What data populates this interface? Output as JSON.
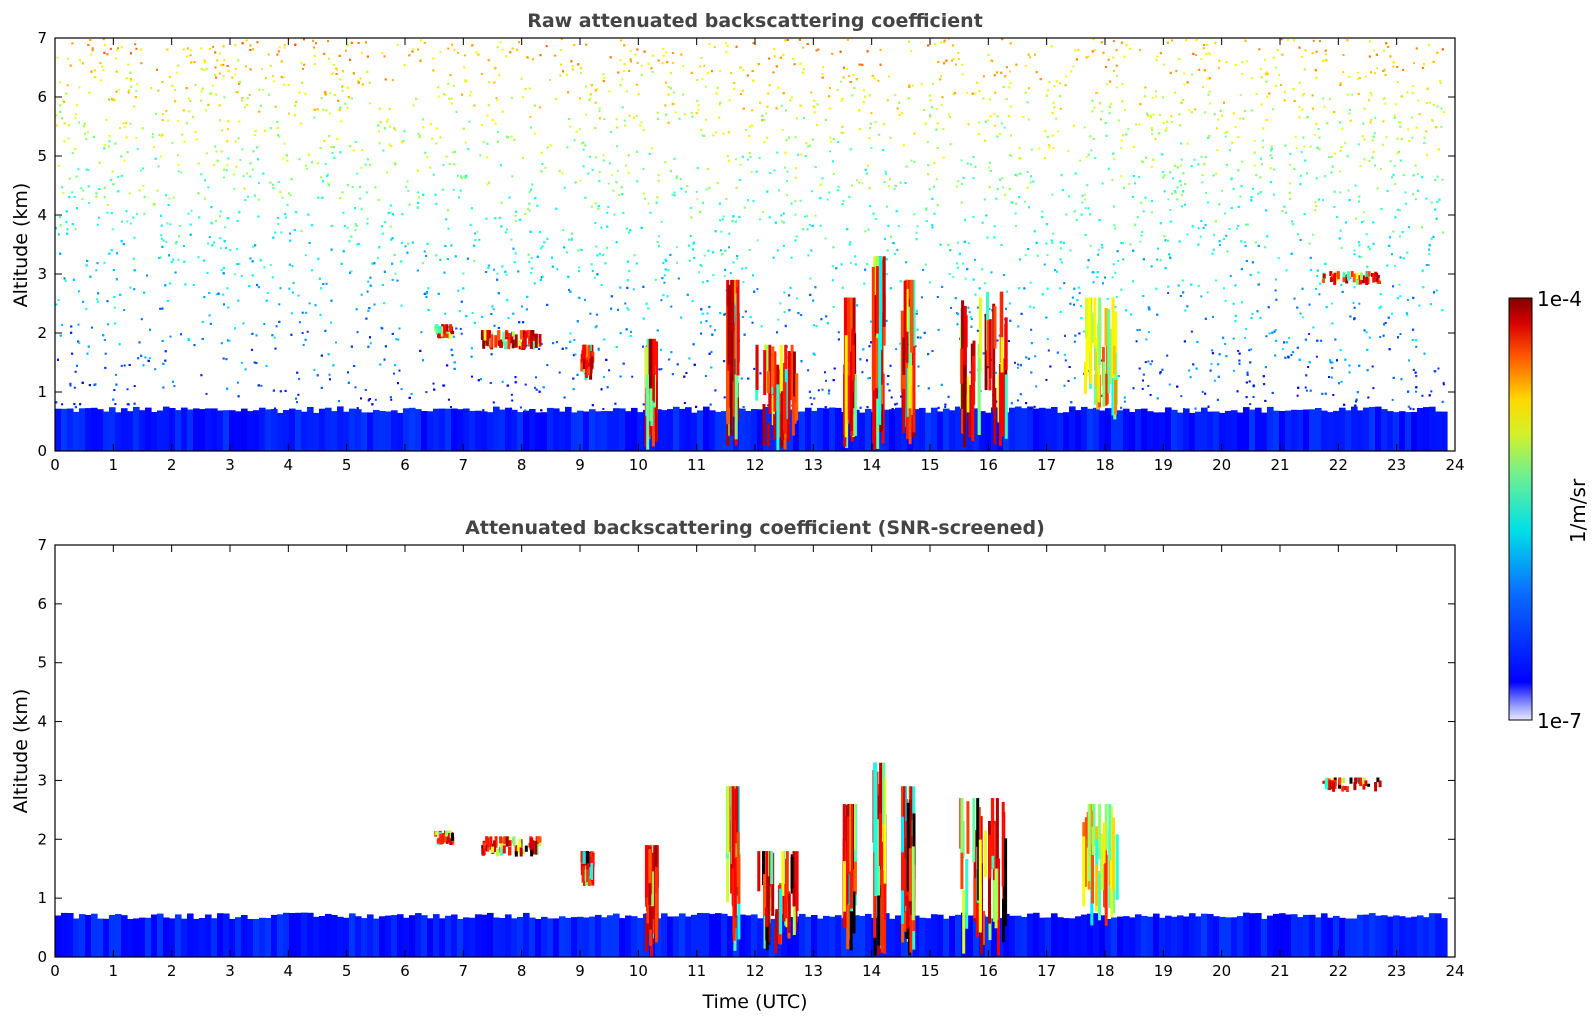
{
  "chart_data": [
    {
      "type": "heatmap",
      "title": "Raw attenuated backscattering coefficient",
      "xlabel": "",
      "ylabel": "Altitude (km)",
      "xlim": [
        0,
        24
      ],
      "ylim": [
        0,
        7
      ],
      "x_ticks": [
        "0",
        "1",
        "2",
        "3",
        "4",
        "5",
        "6",
        "7",
        "8",
        "9",
        "10",
        "11",
        "12",
        "13",
        "14",
        "15",
        "16",
        "17",
        "18",
        "19",
        "20",
        "21",
        "22",
        "23",
        "24"
      ],
      "y_ticks": [
        "0",
        "1",
        "2",
        "3",
        "4",
        "5",
        "6",
        "7"
      ],
      "boundary_layer_top_km": 0.7,
      "features": [
        {
          "kind": "aerosol_layer",
          "x0": 7.3,
          "x1": 8.3,
          "y0": 1.7,
          "y1": 2.05,
          "level": "high"
        },
        {
          "kind": "cloud",
          "x0": 6.5,
          "x1": 6.8,
          "y0": 1.9,
          "y1": 2.15,
          "level": "high"
        },
        {
          "kind": "cloud",
          "x0": 9.0,
          "x1": 9.2,
          "y0": 1.2,
          "y1": 1.8,
          "level": "high"
        },
        {
          "kind": "cloud",
          "x0": 10.1,
          "x1": 10.3,
          "y0": 0.0,
          "y1": 1.9,
          "level": "high"
        },
        {
          "kind": "cloud",
          "x0": 11.5,
          "x1": 11.7,
          "y0": 0.0,
          "y1": 2.9,
          "level": "high"
        },
        {
          "kind": "cloud",
          "x0": 12.0,
          "x1": 12.7,
          "y0": 0.0,
          "y1": 1.8,
          "level": "high"
        },
        {
          "kind": "cloud",
          "x0": 13.5,
          "x1": 13.7,
          "y0": 0.0,
          "y1": 2.6,
          "level": "high"
        },
        {
          "kind": "cloud",
          "x0": 14.0,
          "x1": 14.2,
          "y0": 0.0,
          "y1": 3.3,
          "level": "high"
        },
        {
          "kind": "cloud",
          "x0": 14.5,
          "x1": 14.7,
          "y0": 0.0,
          "y1": 2.9,
          "level": "high"
        },
        {
          "kind": "cloud",
          "x0": 15.5,
          "x1": 16.3,
          "y0": 0.0,
          "y1": 2.7,
          "level": "high"
        },
        {
          "kind": "cloud",
          "x0": 17.6,
          "x1": 18.2,
          "y0": 0.5,
          "y1": 2.6,
          "level": "medium"
        },
        {
          "kind": "cloud",
          "x0": 21.7,
          "x1": 22.7,
          "y0": 2.8,
          "y1": 3.05,
          "level": "high"
        }
      ]
    },
    {
      "type": "heatmap",
      "title": "Attenuated backscattering coefficient (SNR-screened)",
      "xlabel": "Time (UTC)",
      "ylabel": "Altitude (km)",
      "xlim": [
        0,
        24
      ],
      "ylim": [
        0,
        7
      ],
      "x_ticks": [
        "0",
        "1",
        "2",
        "3",
        "4",
        "5",
        "6",
        "7",
        "8",
        "9",
        "10",
        "11",
        "12",
        "13",
        "14",
        "15",
        "16",
        "17",
        "18",
        "19",
        "20",
        "21",
        "22",
        "23",
        "24"
      ],
      "y_ticks": [
        "0",
        "1",
        "2",
        "3",
        "4",
        "5",
        "6",
        "7"
      ],
      "boundary_layer_top_km": 0.7,
      "screened": true
    }
  ],
  "colorbar": {
    "label": "1/m/sr",
    "min_label": "1e-7",
    "max_label": "1e-4",
    "colormap": "jet"
  },
  "colors": {
    "low": "#0014ff",
    "mid": "#6ef090",
    "high": "#ff2a00",
    "max": "#7f0000",
    "title": "#444444"
  }
}
